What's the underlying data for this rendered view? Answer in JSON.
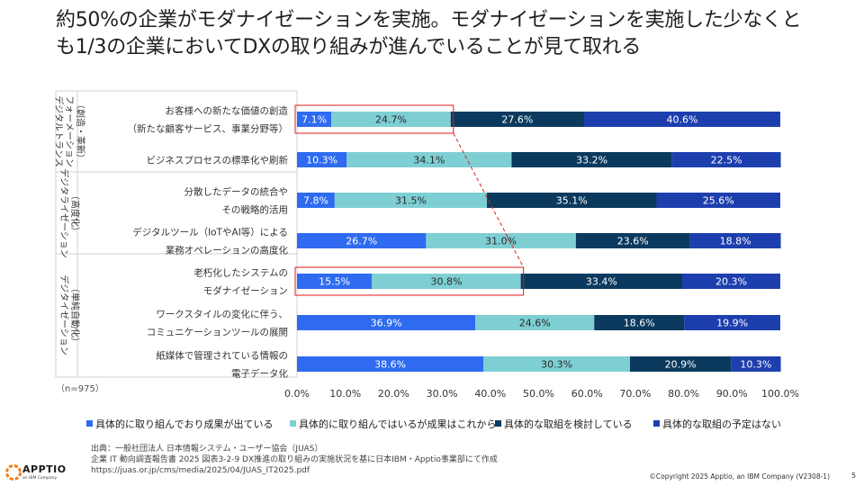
{
  "page": {
    "title_line1": "約50%の企業がモダナイゼーションを実施。モダナイゼーションを実施した少なくと",
    "title_line2": "も1/3の企業においてDXの取り組みが進んでいることが見て取れる",
    "page_number": "5",
    "copyright": "©Copyright 2025 Apptio, an IBM Company (V2308-1)",
    "source_lines": [
      "出典：一般社団法人 日本情報システム・ユーザー協会（JUAS）",
      "企業 IT 動向調査報告書 2025 図表3-2-9 DX推進の取り組みの実施状況を基に日本IBM・Apptio事業部にて作成",
      "https://juas.or.jp/cms/media/2025/04/JUAS_IT2025.pdf"
    ],
    "logo_text": "APPTIO",
    "logo_sub": "an IBM Company"
  },
  "colors": {
    "c1": "#2e6bf0",
    "c2": "#7ecfd4",
    "c3": "#0b3a5e",
    "c4": "#1d3fae",
    "highlight": "#e01b1b"
  },
  "chart_data": {
    "type": "bar",
    "orientation": "horizontal",
    "stacked": true,
    "sample_note": "（n=975）",
    "xlim": [
      0,
      100
    ],
    "x_ticks": [
      "0.0%",
      "10.0%",
      "20.0%",
      "30.0%",
      "40.0%",
      "50.0%",
      "60.0%",
      "70.0%",
      "80.0%",
      "90.0%",
      "100.0%"
    ],
    "groups": [
      {
        "label_lines": [
          "デジタルトランス",
          "フォーメーション",
          "（創造・革新）"
        ],
        "rows": [
          0,
          1
        ]
      },
      {
        "label_lines": [
          "デジタライゼーション",
          "（高度化）"
        ],
        "rows": [
          2,
          3
        ]
      },
      {
        "label_lines": [
          "デジタイゼーション",
          "（単純自動化）"
        ],
        "rows": [
          4,
          5,
          6
        ]
      }
    ],
    "categories": [
      [
        "お客様への新たな価値の創造",
        "（新たな顧客サービス、事業分野等）"
      ],
      [
        "ビジネスプロセスの標準化や刷新"
      ],
      [
        "分散したデータの統合や",
        "その戦略的活用"
      ],
      [
        "デジタルツール（IoTやAI等）による",
        "業務オペレーションの高度化"
      ],
      [
        "老朽化したシステムの",
        "モダナイゼーション"
      ],
      [
        "ワークスタイルの変化に伴う、",
        "コミュニケーションツールの展開"
      ],
      [
        "紙媒体で管理されている情報の",
        "電子データ化"
      ]
    ],
    "series": [
      {
        "name": "具体的に取り組んでおり成果が出ている",
        "values": [
          7.1,
          10.3,
          7.8,
          26.7,
          15.5,
          36.9,
          38.6
        ]
      },
      {
        "name": "具体的に取り組んではいるが成果はこれから",
        "values": [
          24.7,
          34.1,
          31.5,
          31.0,
          30.8,
          24.6,
          30.3
        ]
      },
      {
        "name": "具体的な取組を検討している",
        "values": [
          27.6,
          33.2,
          35.1,
          23.6,
          33.4,
          18.6,
          20.9
        ]
      },
      {
        "name": "具体的な取組の予定はない",
        "values": [
          40.6,
          22.5,
          25.6,
          18.8,
          20.3,
          19.9,
          10.3
        ]
      }
    ],
    "highlights": [
      {
        "row": 0,
        "from": 0,
        "to": 31.8
      },
      {
        "row": 4,
        "from": 0,
        "to": 46.3
      }
    ]
  }
}
